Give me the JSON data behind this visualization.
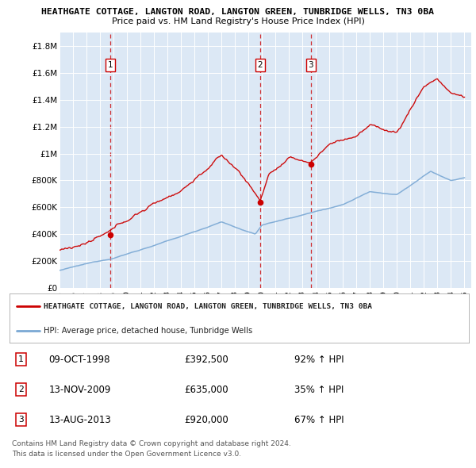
{
  "title": "HEATHGATE COTTAGE, LANGTON ROAD, LANGTON GREEN, TUNBRIDGE WELLS, TN3 0BA",
  "subtitle": "Price paid vs. HM Land Registry's House Price Index (HPI)",
  "ylim": [
    0,
    1900000
  ],
  "yticks": [
    0,
    200000,
    400000,
    600000,
    800000,
    1000000,
    1200000,
    1400000,
    1600000,
    1800000
  ],
  "ytick_labels": [
    "£0",
    "£200K",
    "£400K",
    "£600K",
    "£800K",
    "£1M",
    "£1.2M",
    "£1.4M",
    "£1.6M",
    "£1.8M"
  ],
  "xmin": 1995,
  "xmax": 2025.5,
  "sales": [
    {
      "year": 1998.77,
      "price": 392500,
      "label": "1"
    },
    {
      "year": 2009.86,
      "price": 635000,
      "label": "2"
    },
    {
      "year": 2013.61,
      "price": 920000,
      "label": "3"
    }
  ],
  "hpi_color": "#7aa8d4",
  "price_color": "#cc0000",
  "background_color": "#dce8f5",
  "legend_items": [
    "HEATHGATE COTTAGE, LANGTON ROAD, LANGTON GREEN, TUNBRIDGE WELLS, TN3 0BA",
    "HPI: Average price, detached house, Tunbridge Wells"
  ],
  "table_rows": [
    [
      "1",
      "09-OCT-1998",
      "£392,500",
      "92% ↑ HPI"
    ],
    [
      "2",
      "13-NOV-2009",
      "£635,000",
      "35% ↑ HPI"
    ],
    [
      "3",
      "13-AUG-2013",
      "£920,000",
      "67% ↑ HPI"
    ]
  ],
  "footnote1": "Contains HM Land Registry data © Crown copyright and database right 2024.",
  "footnote2": "This data is licensed under the Open Government Licence v3.0."
}
